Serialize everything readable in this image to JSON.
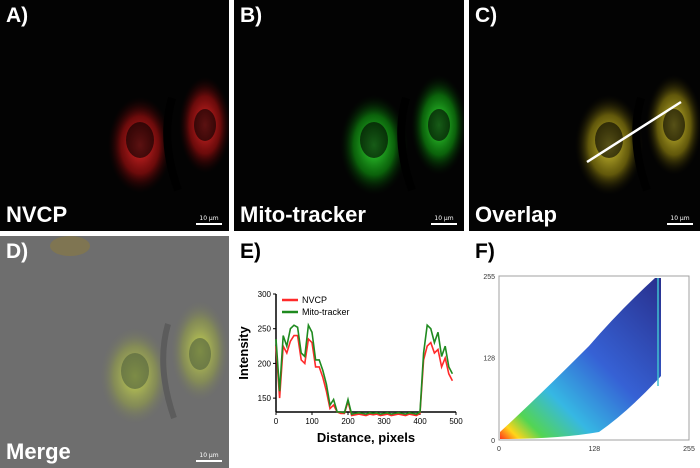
{
  "panels": {
    "a": {
      "label": "A)",
      "caption": "NVCP",
      "scale": "10 μm",
      "color": "#ff2020"
    },
    "b": {
      "label": "B)",
      "caption": "Mito-tracker",
      "scale": "10 μm",
      "color": "#20e020"
    },
    "c": {
      "label": "C)",
      "caption": "Overlap",
      "scale": "10 μm",
      "color": "#e0d020"
    },
    "d": {
      "label": "D)",
      "caption": "Merge",
      "scale": "10 μm"
    },
    "e": {
      "label": "E)"
    },
    "f": {
      "label": "F)"
    }
  },
  "chart_data": [
    {
      "type": "line",
      "panel": "E",
      "xlabel": "Distance, pixels",
      "ylabel": "Intensity",
      "xlim": [
        0,
        500
      ],
      "ylim": [
        130,
        300
      ],
      "xticks": [
        0,
        100,
        200,
        300,
        400,
        500
      ],
      "yticks": [
        150,
        200,
        250,
        300
      ],
      "legend_position": "top-left",
      "series": [
        {
          "name": "NVCP",
          "color": "#ff2a2a",
          "x": [
            0,
            10,
            20,
            30,
            40,
            50,
            60,
            70,
            80,
            90,
            100,
            110,
            120,
            130,
            140,
            150,
            160,
            170,
            180,
            190,
            200,
            210,
            220,
            230,
            240,
            250,
            260,
            270,
            280,
            290,
            300,
            310,
            320,
            330,
            340,
            350,
            360,
            370,
            380,
            390,
            400,
            410,
            420,
            430,
            440,
            450,
            460,
            470,
            480,
            490
          ],
          "y": [
            225,
            150,
            225,
            215,
            232,
            240,
            240,
            205,
            200,
            235,
            230,
            195,
            195,
            180,
            160,
            135,
            140,
            130,
            128,
            128,
            145,
            125,
            126,
            127,
            126,
            125,
            127,
            126,
            127,
            125,
            126,
            127,
            125,
            126,
            127,
            126,
            125,
            127,
            126,
            125,
            128,
            205,
            225,
            230,
            215,
            220,
            195,
            208,
            185,
            175
          ]
        },
        {
          "name": "Mito-tracker",
          "color": "#1f8a1f",
          "x": [
            0,
            10,
            20,
            30,
            40,
            50,
            60,
            70,
            80,
            90,
            100,
            110,
            120,
            130,
            140,
            150,
            160,
            170,
            180,
            190,
            200,
            210,
            220,
            230,
            240,
            250,
            260,
            270,
            280,
            290,
            300,
            310,
            320,
            330,
            340,
            350,
            360,
            370,
            380,
            390,
            400,
            410,
            420,
            430,
            440,
            450,
            460,
            470,
            480,
            490
          ],
          "y": [
            235,
            160,
            240,
            225,
            250,
            255,
            252,
            215,
            210,
            255,
            245,
            205,
            205,
            190,
            170,
            140,
            148,
            130,
            130,
            129,
            148,
            127,
            128,
            129,
            128,
            127,
            129,
            128,
            129,
            127,
            128,
            129,
            127,
            128,
            129,
            128,
            127,
            129,
            128,
            127,
            130,
            215,
            255,
            250,
            230,
            245,
            210,
            225,
            195,
            185
          ]
        }
      ]
    },
    {
      "type": "scatter",
      "panel": "F",
      "xlim": [
        0,
        255
      ],
      "ylim": [
        0,
        255
      ],
      "xticks": [
        0,
        128,
        255
      ],
      "yticks": [
        0,
        128,
        255
      ]
    }
  ]
}
